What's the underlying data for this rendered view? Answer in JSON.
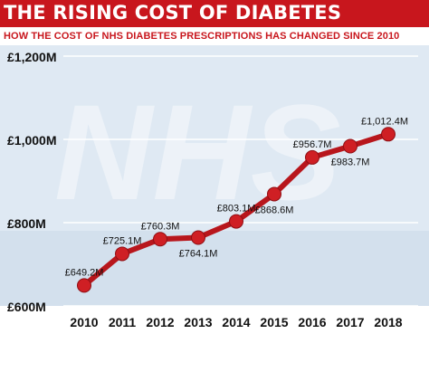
{
  "title": "THE RISING COST OF DIABETES",
  "subtitle": "HOW THE COST OF NHS DIABETES PRESCRIPTIONS HAS CHANGED SINCE 2010",
  "background_watermark": "NHS",
  "colors": {
    "title_bg": "#c8161d",
    "line": "#b8161c",
    "marker": "#cf1f24",
    "plot_bg": "#dfe9f3",
    "grid": "#ffffff",
    "text": "#111111"
  },
  "chart_data": {
    "type": "line",
    "x": [
      "2010",
      "2011",
      "2012",
      "2013",
      "2014",
      "2015",
      "2016",
      "2017",
      "2018"
    ],
    "values": [
      649.2,
      725.1,
      760.3,
      764.1,
      803.1,
      868.6,
      956.7,
      983.7,
      1012.4
    ],
    "data_labels": [
      "£649.2M",
      "£725.1M",
      "£760.3M",
      "£764.1M",
      "£803.1M",
      "£868.6M",
      "£956.7M",
      "£983.7M",
      "£1,012.4M"
    ],
    "label_position": [
      "above",
      "above",
      "above",
      "below",
      "above",
      "below",
      "above",
      "below",
      "above"
    ],
    "yticks": [
      600,
      800,
      1000,
      1200
    ],
    "ytick_labels": [
      "£600M",
      "£800M",
      "£1,000M",
      "£1,200M"
    ],
    "ylim": [
      600,
      1200
    ],
    "grid": true,
    "xlabel": "",
    "ylabel": ""
  }
}
